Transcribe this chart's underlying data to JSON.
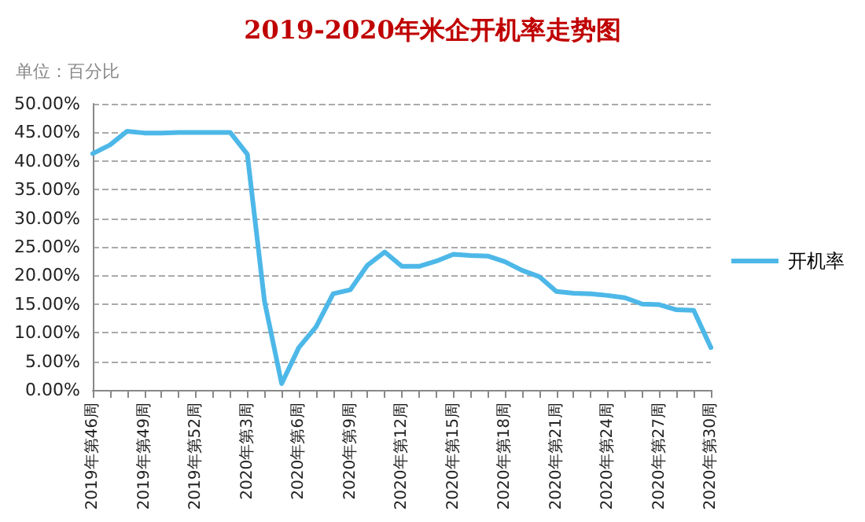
{
  "chart_data": {
    "type": "line",
    "title": "2019-2020年米企开机率走势图",
    "annotations": [
      "单位：百分比"
    ],
    "categories": [
      "2019年第46周",
      null,
      null,
      "2019年第49周",
      null,
      null,
      "2019年第52周",
      null,
      null,
      "2020年第3周",
      null,
      null,
      "2020年第6周",
      null,
      null,
      "2020年第9周",
      null,
      null,
      "2020年第12周",
      null,
      null,
      "2020年第15周",
      null,
      null,
      "2020年第18周",
      null,
      null,
      "2020年第21周",
      null,
      null,
      "2020年第24周",
      null,
      null,
      "2020年第27周",
      null,
      null,
      "2020年第30周"
    ],
    "series": [
      {
        "name": "开机率",
        "color": "#4db8e8",
        "values": [
          41.3,
          42.8,
          45.2,
          44.9,
          44.9,
          45,
          45,
          45,
          45,
          41.2,
          15.5,
          1.1,
          7.4,
          11,
          16.8,
          17.5,
          21.8,
          24.1,
          21.6,
          21.6,
          22.5,
          23.7,
          23.5,
          23.4,
          22.4,
          20.9,
          19.8,
          17.2,
          16.9,
          16.8,
          16.5,
          16.1,
          15,
          14.9,
          14,
          13.9,
          7.4
        ]
      }
    ],
    "ylim": [
      0,
      50
    ],
    "yticks": [
      {
        "value": 0,
        "label": "0.00%"
      },
      {
        "value": 5,
        "label": "5.00%"
      },
      {
        "value": 10,
        "label": "10.00%"
      },
      {
        "value": 15,
        "label": "15.00%"
      },
      {
        "value": 20,
        "label": "20.00%"
      },
      {
        "value": 25,
        "label": "25.00%"
      },
      {
        "value": 30,
        "label": "30.00%"
      },
      {
        "value": 35,
        "label": "35.00%"
      },
      {
        "value": 40,
        "label": "40.00%"
      },
      {
        "value": 45,
        "label": "45.00%"
      },
      {
        "value": 50,
        "label": "50.00%"
      }
    ],
    "grid": "y",
    "legend": "right",
    "marker": "none",
    "line_style": "solid"
  }
}
